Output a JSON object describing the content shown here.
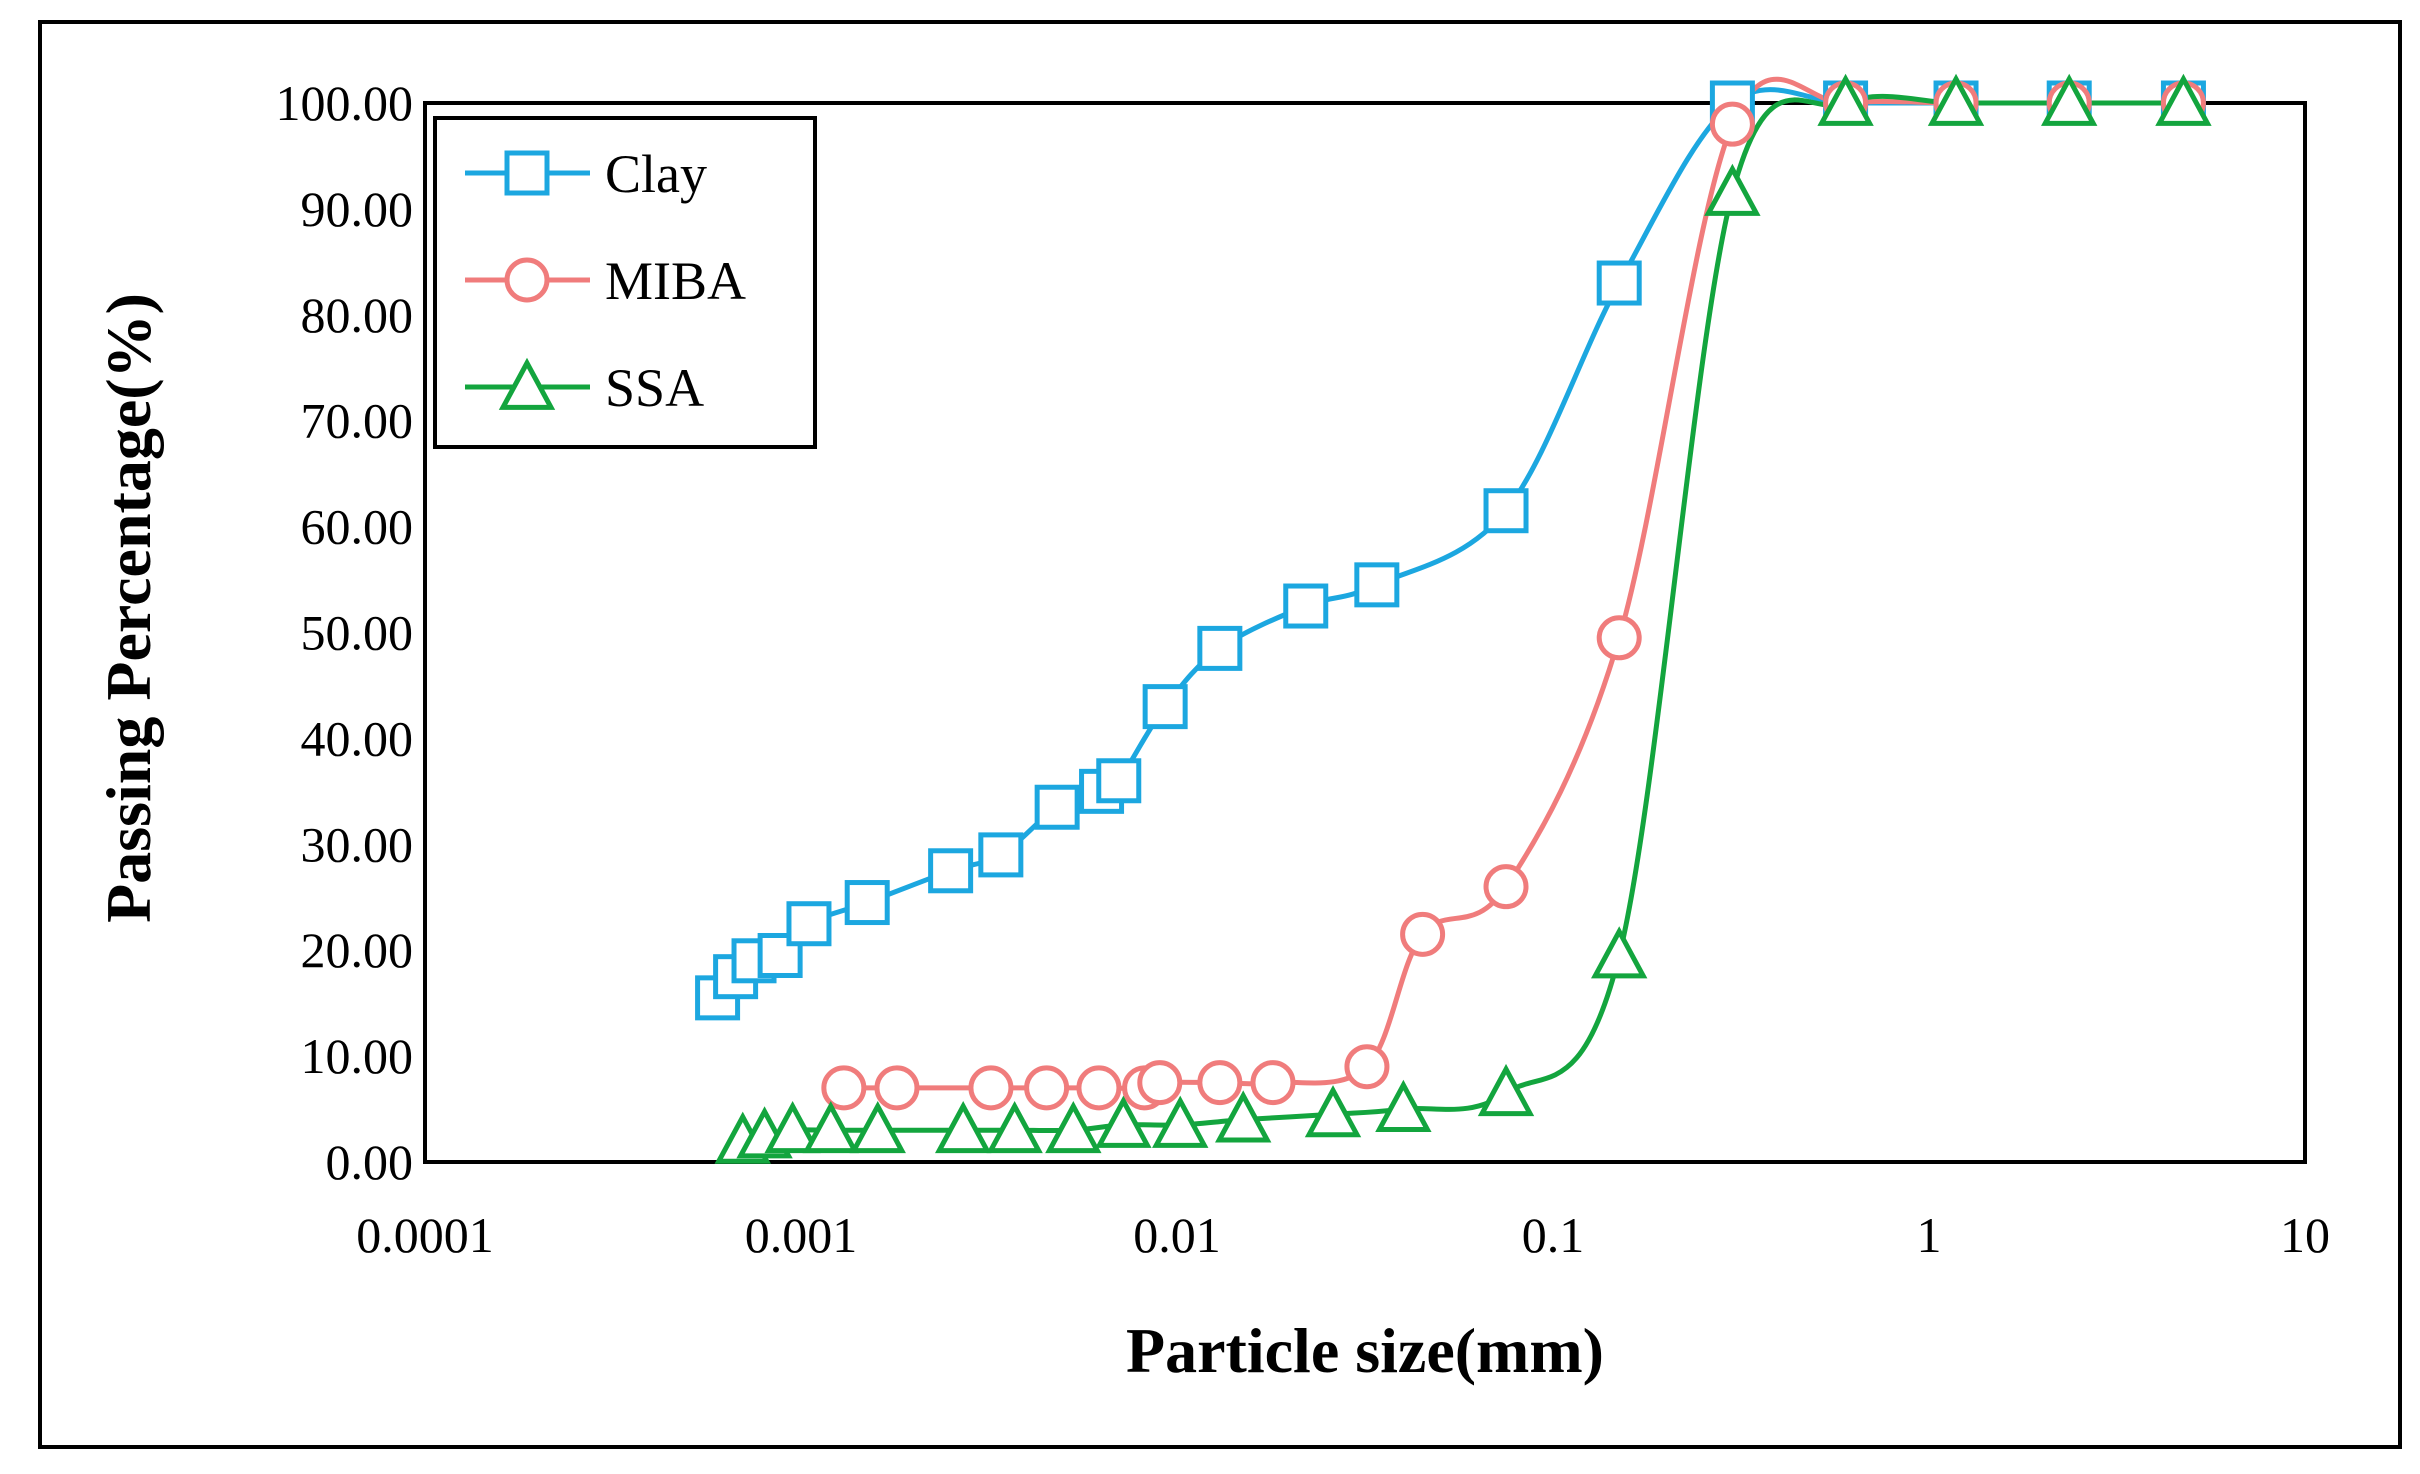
{
  "colors": {
    "clay": "#1CA7E0",
    "miba": "#F07C7C",
    "ssa": "#13A53E",
    "grid": "#d9d9d9",
    "axis": "#000000"
  },
  "chart_data": {
    "type": "scatter",
    "title": "",
    "xlabel": "Particle size(mm)",
    "ylabel": "Passing Percentage(%)",
    "xscale": "log",
    "xlim": [
      0.0001,
      10
    ],
    "ylim": [
      0,
      100
    ],
    "xticks": [
      0.0001,
      0.001,
      0.01,
      0.1,
      1,
      10
    ],
    "xtick_labels": [
      "0.0001",
      "0.001",
      "0.01",
      "0.1",
      "1",
      "10"
    ],
    "yticks": [
      0,
      10,
      20,
      30,
      40,
      50,
      60,
      70,
      80,
      90,
      100
    ],
    "ytick_labels": [
      "0.00",
      "10.00",
      "20.00",
      "30.00",
      "40.00",
      "50.00",
      "60.00",
      "70.00",
      "80.00",
      "90.00",
      "100.00"
    ],
    "grid": true,
    "legend_position": "top-left",
    "series": [
      {
        "name": "Clay",
        "marker": "square",
        "color_key": "clay",
        "x": [
          0.0006,
          0.00067,
          0.00075,
          0.00088,
          0.00105,
          0.0015,
          0.0025,
          0.0034,
          0.0048,
          0.0063,
          0.007,
          0.0093,
          0.013,
          0.022,
          0.034,
          0.075,
          0.15,
          0.3,
          0.6,
          1.18,
          2.36,
          4.75
        ],
        "y": [
          15.5,
          17.5,
          19.0,
          19.5,
          22.5,
          24.5,
          27.5,
          29.0,
          33.5,
          35.0,
          36.0,
          43.0,
          48.5,
          52.5,
          54.5,
          61.5,
          83.0,
          100,
          100,
          100,
          100,
          100
        ]
      },
      {
        "name": "MIBA",
        "marker": "circle",
        "color_key": "miba",
        "x": [
          0.0013,
          0.0018,
          0.0032,
          0.0045,
          0.0062,
          0.0082,
          0.009,
          0.013,
          0.018,
          0.032,
          0.045,
          0.075,
          0.15,
          0.3,
          0.6,
          1.18,
          2.36,
          4.75
        ],
        "y": [
          7.0,
          7.0,
          7.0,
          7.0,
          7.0,
          7.0,
          7.5,
          7.5,
          7.5,
          9.0,
          21.5,
          26.0,
          49.5,
          98.0,
          100,
          100,
          100,
          100
        ]
      },
      {
        "name": "SSA",
        "marker": "triangle",
        "color_key": "ssa",
        "x": [
          0.0007,
          0.0008,
          0.00095,
          0.0012,
          0.0016,
          0.0027,
          0.0037,
          0.0053,
          0.0072,
          0.0102,
          0.015,
          0.026,
          0.04,
          0.075,
          0.15,
          0.3,
          0.6,
          1.18,
          2.36,
          4.75
        ],
        "y": [
          2.0,
          2.5,
          3.0,
          3.0,
          3.0,
          3.0,
          3.0,
          3.0,
          3.5,
          3.5,
          4.0,
          4.5,
          5.0,
          6.5,
          19.5,
          91.5,
          100,
          100,
          100,
          100
        ]
      }
    ]
  }
}
